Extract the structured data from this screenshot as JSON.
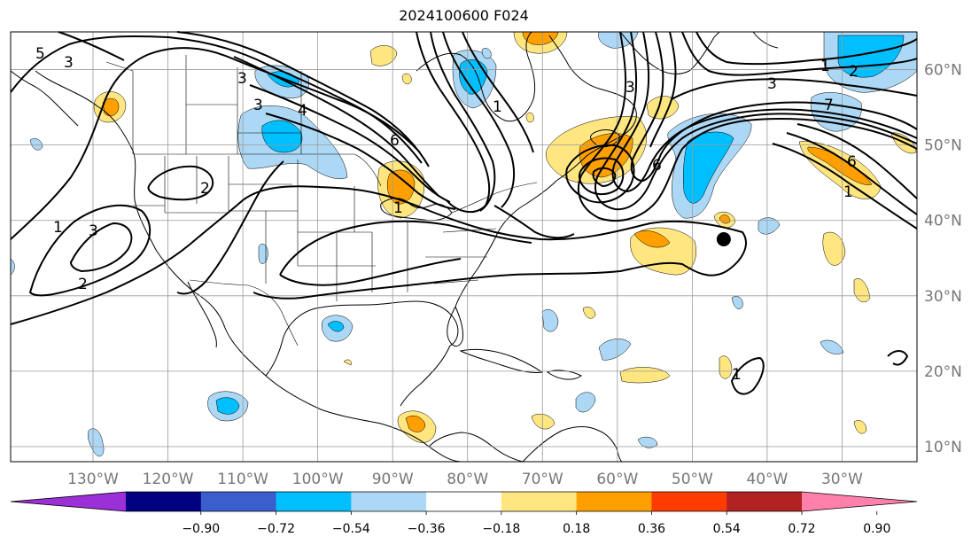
{
  "title": "2024100600 F024",
  "map": {
    "lon_range": [
      -141,
      -20
    ],
    "lat_range": [
      8,
      65
    ],
    "lon_ticks": [
      {
        "value": -130,
        "label": "130°W"
      },
      {
        "value": -120,
        "label": "120°W"
      },
      {
        "value": -110,
        "label": "110°W"
      },
      {
        "value": -100,
        "label": "100°W"
      },
      {
        "value": -90,
        "label": "90°W"
      },
      {
        "value": -80,
        "label": "80°W"
      },
      {
        "value": -70,
        "label": "70°W"
      },
      {
        "value": -60,
        "label": "60°W"
      },
      {
        "value": -50,
        "label": "50°W"
      },
      {
        "value": -40,
        "label": "40°W"
      },
      {
        "value": -30,
        "label": "30°W"
      }
    ],
    "lat_ticks": [
      {
        "value": 60,
        "label": "60°N"
      },
      {
        "value": 50,
        "label": "50°N"
      },
      {
        "value": 40,
        "label": "40°N"
      },
      {
        "value": 30,
        "label": "30°N"
      },
      {
        "value": 20,
        "label": "20°N"
      },
      {
        "value": 10,
        "label": "10°N"
      }
    ],
    "gridlines": true,
    "marker": {
      "lon": -45.8,
      "lat": 37.5,
      "shape": "filled-circle"
    },
    "contour_labels": [
      "1",
      "2",
      "3",
      "4",
      "5",
      "6",
      "7"
    ]
  },
  "colorbar": {
    "extend": "both",
    "ticks": [
      "−0.90",
      "−0.72",
      "−0.54",
      "−0.36",
      "−0.18",
      "0.18",
      "0.36",
      "0.54",
      "0.72",
      "0.90"
    ],
    "colors": [
      "#9b30d9",
      "#000080",
      "#3a5fcd",
      "#00bfff",
      "#add8f5",
      "#ffffff",
      "#ffe680",
      "#ffa000",
      "#ff3c00",
      "#b22222",
      "#ff80aa"
    ]
  }
}
